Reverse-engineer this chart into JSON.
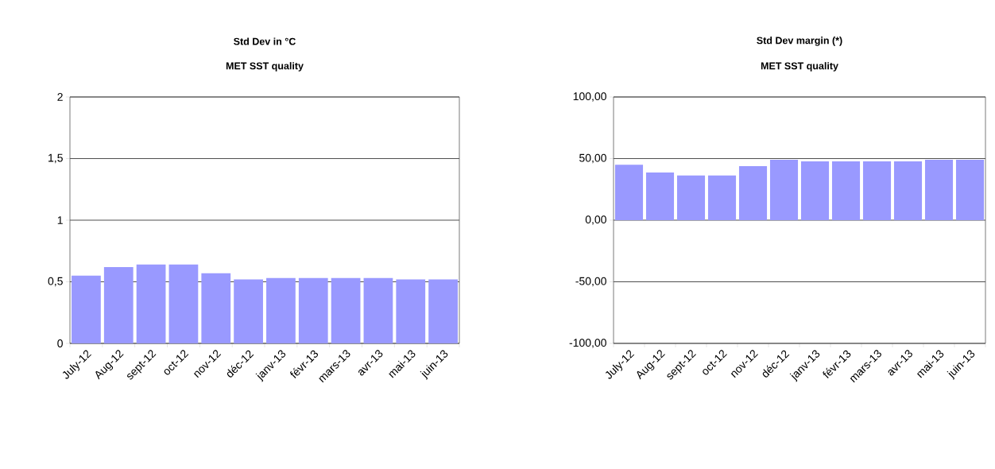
{
  "chart_data": [
    {
      "type": "bar",
      "title": "Std Dev  in °C",
      "subtitle": "MET SST quality",
      "categories": [
        "July-12",
        "Aug-12",
        "sept-12",
        "oct-12",
        "nov-12",
        "déc-12",
        "janv-13",
        "févr-13",
        "mars-13",
        "avr-13",
        "mai-13",
        "juin-13"
      ],
      "values": [
        0.55,
        0.62,
        0.64,
        0.64,
        0.57,
        0.52,
        0.53,
        0.53,
        0.53,
        0.53,
        0.52,
        0.52
      ],
      "color": "#9999ff",
      "ylim": [
        0,
        2
      ],
      "yticks": [
        0,
        {
          "value": 0.5,
          "label": "0,5"
        },
        1,
        {
          "value": 1.5,
          "label": "1,5"
        },
        2
      ],
      "grid": "y"
    },
    {
      "type": "bar",
      "title": "Std Dev margin (*)",
      "subtitle": "MET SST quality",
      "categories": [
        "July-12",
        "Aug-12",
        "sept-12",
        "oct-12",
        "nov-12",
        "déc-12",
        "janv-13",
        "févr-13",
        "mars-13",
        "avr-13",
        "mai-13",
        "juin-13"
      ],
      "values": [
        45,
        38.7,
        36.3,
        36.3,
        43.9,
        49.1,
        47.8,
        47.8,
        47.8,
        47.8,
        49.1,
        49.1
      ],
      "color": "#9999ff",
      "ylim": [
        -100,
        100
      ],
      "yticks": [
        {
          "value": -100,
          "label": "-100,00"
        },
        {
          "value": -50,
          "label": "-50,00"
        },
        {
          "value": 0,
          "label": "0,00"
        },
        {
          "value": 50,
          "label": "50,00"
        },
        {
          "value": 100,
          "label": "100,00"
        }
      ],
      "grid": "y"
    }
  ]
}
